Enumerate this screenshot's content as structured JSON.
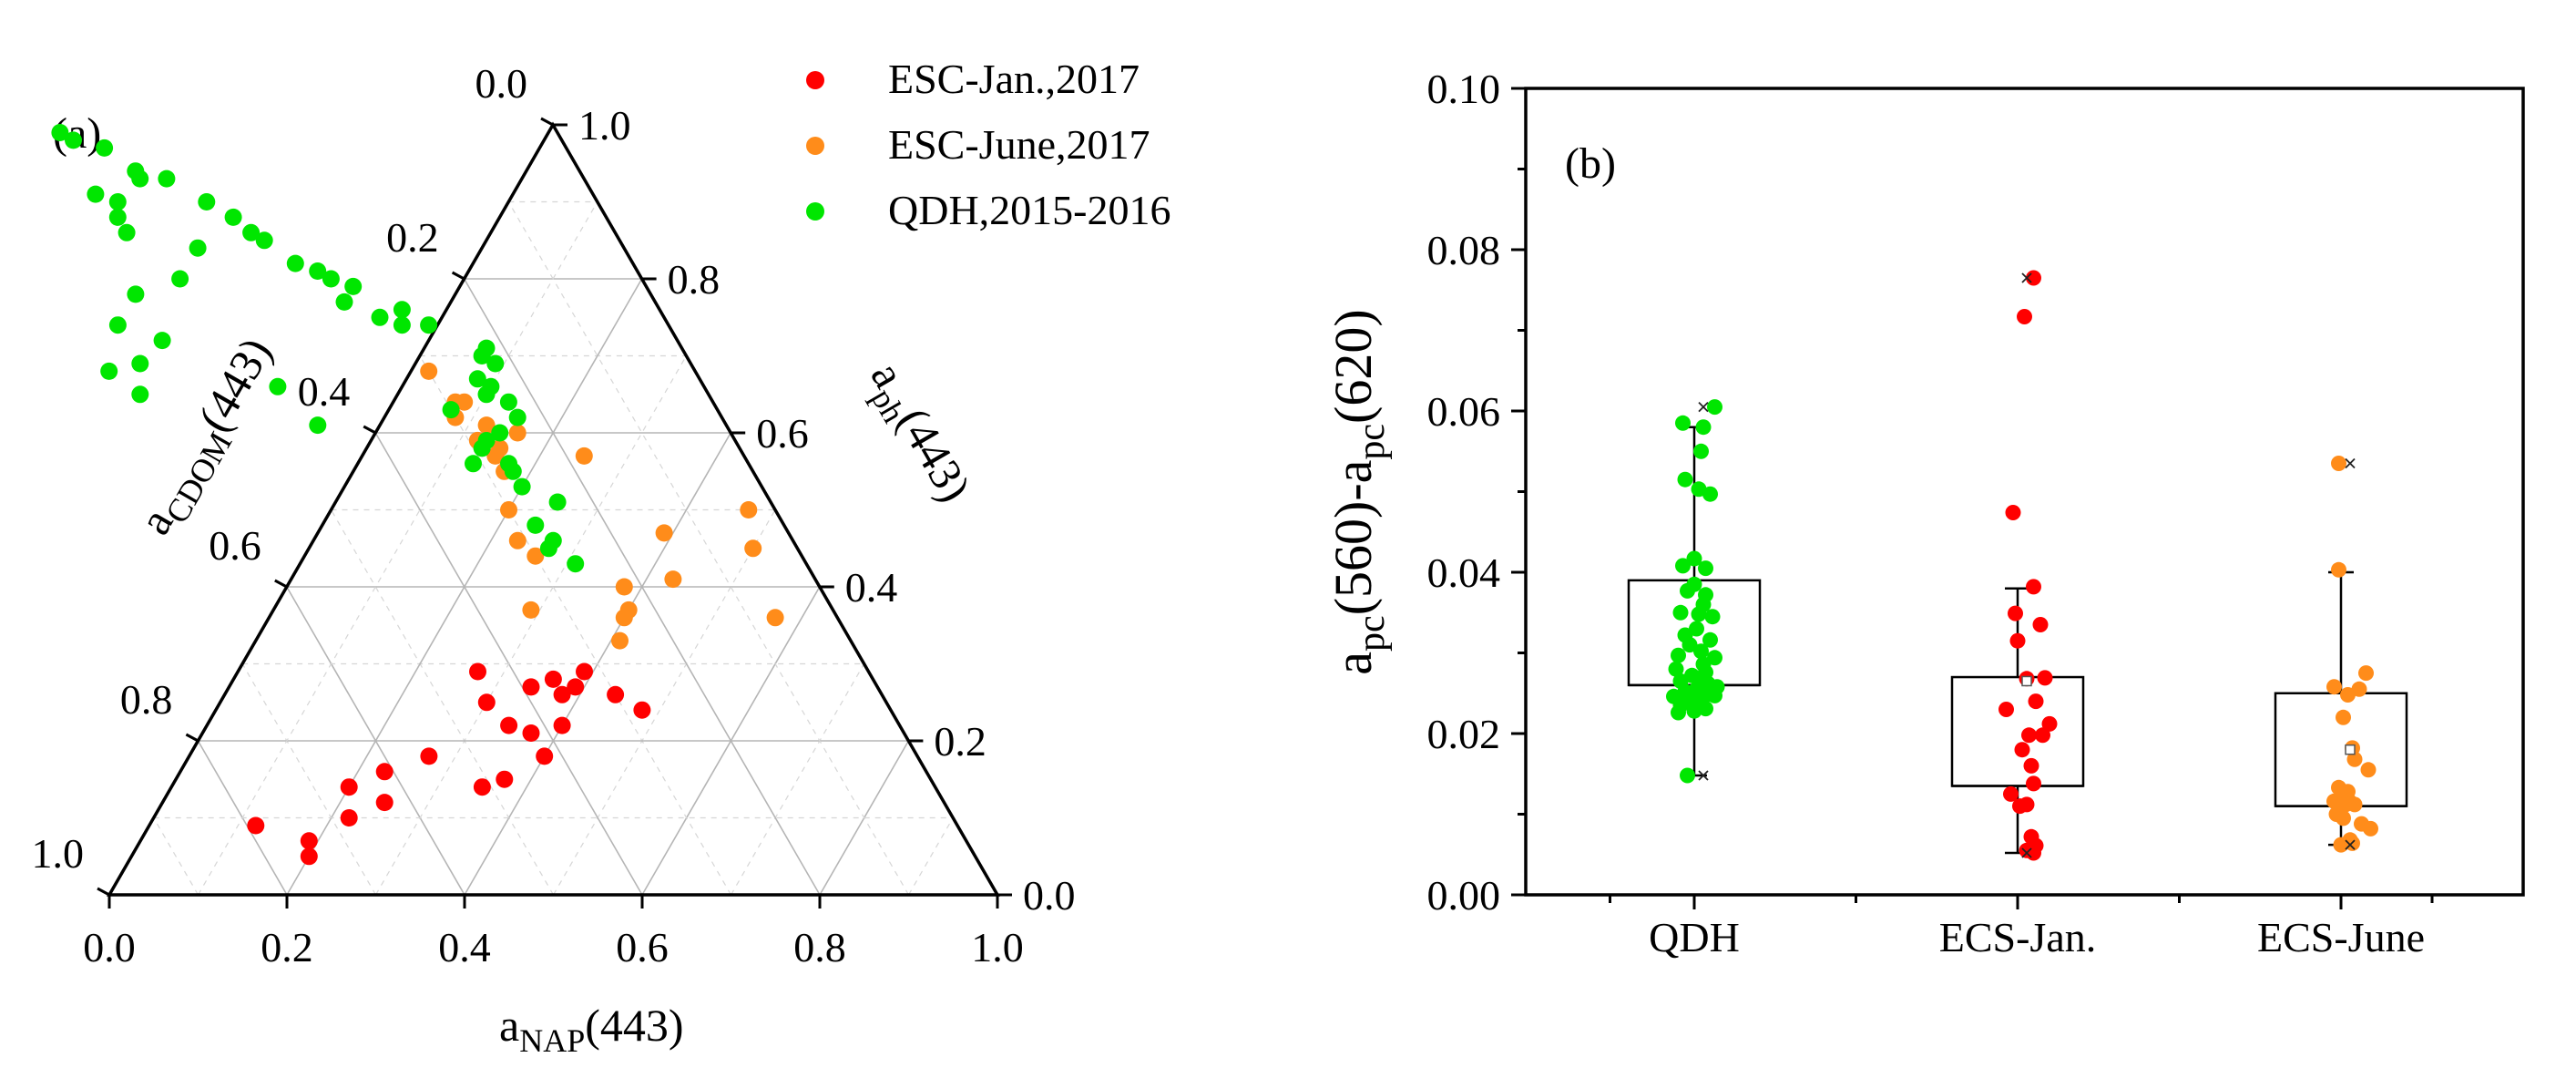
{
  "chart_data": [
    {
      "type": "ternary-scatter",
      "panel_label": "(a)",
      "axes": {
        "bottom": {
          "label_main": "a",
          "label_sub": "NAP",
          "label_suffix": "(443)",
          "ticks": [
            "0.0",
            "0.2",
            "0.4",
            "0.6",
            "0.8",
            "1.0"
          ]
        },
        "left": {
          "label_main": "a",
          "label_sub": "CDOM",
          "label_suffix": "(443)",
          "ticks": [
            "0.0",
            "0.2",
            "0.4",
            "0.6",
            "0.8",
            "1.0"
          ]
        },
        "right": {
          "label_main": "a",
          "label_sub": "ph",
          "label_suffix": "(443)",
          "ticks": [
            "0.0",
            "0.2",
            "0.4",
            "0.6",
            "0.8",
            "1.0"
          ]
        }
      },
      "legend": [
        {
          "name": "ESC-Jan.,2017",
          "color": "#ff0000"
        },
        {
          "name": "ESC-June,2017",
          "color": "#ff8c1a"
        },
        {
          "name": "QDH,2015-2016",
          "color": "#00e600"
        }
      ],
      "series": [
        {
          "name": "ESC-Jan.,2017",
          "color": "#ff0000",
          "points": [
            [
              0.24,
              0.28,
              0.48
            ],
            [
              0.26,
              0.3,
              0.44
            ],
            [
              0.28,
              0.36,
              0.36
            ],
            [
              0.27,
              0.34,
              0.39
            ],
            [
              0.22,
              0.38,
              0.4
            ],
            [
              0.22,
              0.44,
              0.34
            ],
            [
              0.27,
              0.39,
              0.34
            ],
            [
              0.29,
              0.44,
              0.27
            ],
            [
              0.25,
              0.45,
              0.3
            ],
            [
              0.29,
              0.32,
              0.39
            ],
            [
              0.26,
              0.36,
              0.38
            ],
            [
              0.18,
              0.42,
              0.4
            ],
            [
              0.14,
              0.51,
              0.35
            ],
            [
              0.15,
              0.48,
              0.37
            ],
            [
              0.18,
              0.55,
              0.27
            ],
            [
              0.12,
              0.63,
              0.25
            ],
            [
              0.1,
              0.68,
              0.22
            ],
            [
              0.14,
              0.66,
              0.2
            ],
            [
              0.16,
              0.61,
              0.23
            ],
            [
              0.09,
              0.79,
              0.12
            ],
            [
              0.05,
              0.75,
              0.2
            ],
            [
              0.07,
              0.74,
              0.19
            ],
            [
              0.21,
              0.42,
              0.37
            ]
          ]
        },
        {
          "name": "ESC-June,2017",
          "color": "#ff8c1a",
          "points": [
            [
              0.36,
              0.07,
              0.57
            ],
            [
              0.41,
              0.16,
              0.43
            ],
            [
              0.33,
              0.26,
              0.41
            ],
            [
              0.37,
              0.23,
              0.4
            ],
            [
              0.36,
              0.24,
              0.4
            ],
            [
              0.4,
              0.22,
              0.38
            ],
            [
              0.5,
              0.03,
              0.47
            ],
            [
              0.45,
              0.05,
              0.5
            ],
            [
              0.37,
              0.34,
              0.29
            ],
            [
              0.44,
              0.3,
              0.26
            ],
            [
              0.46,
              0.31,
              0.23
            ],
            [
              0.5,
              0.3,
              0.2
            ],
            [
              0.57,
              0.28,
              0.15
            ],
            [
              0.58,
              0.27,
              0.15
            ],
            [
              0.55,
              0.28,
              0.17
            ],
            [
              0.59,
              0.29,
              0.12
            ],
            [
              0.62,
              0.3,
              0.08
            ],
            [
              0.68,
              0.3,
              0.02
            ],
            [
              0.64,
              0.28,
              0.08
            ],
            [
              0.64,
              0.29,
              0.07
            ],
            [
              0.61,
              0.27,
              0.12
            ],
            [
              0.6,
              0.24,
              0.16
            ],
            [
              0.57,
              0.18,
              0.25
            ],
            [
              0.47,
              0.14,
              0.39
            ]
          ]
        },
        {
          "name": "QDH,2015-2016",
          "color": "#00e600",
          "points": [
            [
              0.43,
              0.26,
              0.31
            ],
            [
              0.45,
              0.28,
              0.27
            ],
            [
              0.46,
              0.27,
              0.27
            ],
            [
              0.48,
              0.28,
              0.24
            ],
            [
              0.51,
              0.24,
              0.25
            ],
            [
              0.53,
              0.27,
              0.2
            ],
            [
              0.55,
              0.27,
              0.18
            ],
            [
              0.56,
              0.27,
              0.17
            ],
            [
              0.56,
              0.31,
              0.13
            ],
            [
              0.58,
              0.29,
              0.13
            ],
            [
              0.59,
              0.28,
              0.13
            ],
            [
              0.6,
              0.26,
              0.14
            ],
            [
              0.62,
              0.23,
              0.15
            ],
            [
              0.63,
              0.3,
              0.07
            ],
            [
              0.64,
              0.23,
              0.13
            ],
            [
              0.65,
              0.25,
              0.1
            ],
            [
              0.66,
              0.24,
              0.1
            ],
            [
              0.67,
              0.25,
              0.08
            ],
            [
              0.69,
              0.22,
              0.09
            ],
            [
              0.7,
              0.23,
              0.07
            ],
            [
              0.71,
              0.22,
              0.07
            ],
            [
              0.74,
              0.27,
              -0.01
            ],
            [
              0.74,
              0.3,
              -0.04
            ],
            [
              0.75,
              0.32,
              -0.07
            ],
            [
              0.76,
              0.29,
              -0.05
            ],
            [
              0.77,
              0.35,
              -0.12
            ],
            [
              0.79,
              0.33,
              -0.12
            ],
            [
              0.8,
              0.35,
              -0.15
            ],
            [
              0.81,
              0.36,
              -0.17
            ],
            [
              0.82,
              0.38,
              -0.2
            ],
            [
              0.85,
              0.4,
              -0.25
            ],
            [
              0.86,
              0.41,
              -0.27
            ],
            [
              0.88,
              0.42,
              -0.3
            ],
            [
              0.9,
              0.44,
              -0.34
            ],
            [
              0.94,
              0.5,
              -0.44
            ],
            [
              0.97,
              0.52,
              -0.49
            ],
            [
              0.93,
              0.47,
              -0.4
            ],
            [
              0.98,
              0.55,
              -0.53
            ],
            [
              0.93,
              0.5,
              -0.43
            ],
            [
              0.9,
              0.54,
              -0.44
            ],
            [
              0.88,
              0.55,
              -0.43
            ],
            [
              0.86,
              0.55,
              -0.41
            ],
            [
              0.99,
              0.56,
              -0.55
            ],
            [
              0.91,
              0.56,
              -0.47
            ],
            [
              0.84,
              0.48,
              -0.32
            ],
            [
              0.8,
              0.52,
              -0.32
            ],
            [
              0.78,
              0.58,
              -0.36
            ],
            [
              0.74,
              0.62,
              -0.36
            ],
            [
              0.72,
              0.58,
              -0.3
            ],
            [
              0.69,
              0.62,
              -0.31
            ],
            [
              0.68,
              0.66,
              -0.34
            ],
            [
              0.65,
              0.64,
              -0.29
            ],
            [
              0.61,
              0.46,
              -0.07
            ],
            [
              0.66,
              0.48,
              -0.14
            ]
          ]
        }
      ]
    },
    {
      "type": "box",
      "panel_label": "(b)",
      "ylabel": {
        "p1_main": "a",
        "p1_sub": "pc",
        "p1_suffix": "(560)-",
        "p2_main": "a",
        "p2_sub": "pc",
        "p2_suffix": "(620)"
      },
      "ylim": [
        0,
        0.1
      ],
      "yticks": [
        "0.00",
        "0.02",
        "0.04",
        "0.06",
        "0.08",
        "0.10"
      ],
      "categories": [
        "QDH",
        "ECS-Jan.",
        "ECS-June"
      ],
      "boxes": [
        {
          "name": "QDH",
          "q1": 0.026,
          "median": 0.026,
          "q3": 0.039,
          "whisker_low": 0.0148,
          "whisker_high": 0.058,
          "mean": null,
          "max": 0.0605,
          "min": 0.0148,
          "color": "#00e600",
          "points": [
            [
              0.09,
              0.0605
            ],
            [
              -0.05,
              0.0585
            ],
            [
              0.04,
              0.058
            ],
            [
              0.03,
              0.055
            ],
            [
              -0.04,
              0.0515
            ],
            [
              0.02,
              0.0503
            ],
            [
              0.07,
              0.0497
            ],
            [
              0.0,
              0.0417
            ],
            [
              -0.05,
              0.0408
            ],
            [
              0.05,
              0.0405
            ],
            [
              0.0,
              0.0385
            ],
            [
              -0.03,
              0.0377
            ],
            [
              0.05,
              0.0372
            ],
            [
              0.04,
              0.036
            ],
            [
              -0.06,
              0.035
            ],
            [
              0.02,
              0.0348
            ],
            [
              0.08,
              0.0345
            ],
            [
              0.01,
              0.033
            ],
            [
              -0.04,
              0.0322
            ],
            [
              0.07,
              0.0316
            ],
            [
              -0.02,
              0.031
            ],
            [
              0.03,
              0.0302
            ],
            [
              -0.07,
              0.0297
            ],
            [
              0.09,
              0.0294
            ],
            [
              0.04,
              0.0286
            ],
            [
              -0.08,
              0.028
            ],
            [
              0.05,
              0.0276
            ],
            [
              -0.01,
              0.0272
            ],
            [
              0.03,
              0.0268
            ],
            [
              -0.06,
              0.0265
            ],
            [
              0.06,
              0.0262
            ],
            [
              0.1,
              0.0258
            ],
            [
              0.01,
              0.0255
            ],
            [
              -0.04,
              0.0252
            ],
            [
              0.07,
              0.0249
            ],
            [
              -0.09,
              0.0246
            ],
            [
              0.03,
              0.0243
            ],
            [
              -0.02,
              0.024
            ],
            [
              0.09,
              0.0247
            ],
            [
              0.02,
              0.0238
            ],
            [
              -0.06,
              0.0235
            ],
            [
              0.05,
              0.0231
            ],
            [
              0.0,
              0.0228
            ],
            [
              -0.07,
              0.0226
            ],
            [
              -0.03,
              0.0148
            ]
          ]
        },
        {
          "name": "ECS-Jan.",
          "q1": 0.0135,
          "median": 0.0135,
          "q3": 0.027,
          "whisker_low": 0.0052,
          "whisker_high": 0.038,
          "mean": 0.0265,
          "max": 0.0765,
          "min": 0.0052,
          "color": "#ff0000",
          "points": [
            [
              0.07,
              0.0765
            ],
            [
              0.03,
              0.0717
            ],
            [
              -0.02,
              0.0474
            ],
            [
              0.07,
              0.0382
            ],
            [
              -0.01,
              0.0349
            ],
            [
              0.1,
              0.0335
            ],
            [
              0.0,
              0.0315
            ],
            [
              0.04,
              0.0268
            ],
            [
              0.12,
              0.0269
            ],
            [
              0.08,
              0.024
            ],
            [
              -0.05,
              0.023
            ],
            [
              0.14,
              0.0212
            ],
            [
              0.11,
              0.0198
            ],
            [
              0.05,
              0.0198
            ],
            [
              0.02,
              0.018
            ],
            [
              0.06,
              0.016
            ],
            [
              0.07,
              0.0138
            ],
            [
              -0.03,
              0.0125
            ],
            [
              0.01,
              0.011
            ],
            [
              0.04,
              0.0112
            ],
            [
              0.06,
              0.0072
            ],
            [
              0.08,
              0.0061
            ],
            [
              0.07,
              0.0052
            ],
            [
              0.04,
              0.0055
            ]
          ]
        },
        {
          "name": "ECS-June",
          "q1": 0.011,
          "median": 0.011,
          "q3": 0.025,
          "whisker_low": 0.0062,
          "whisker_high": 0.04,
          "mean": 0.018,
          "max": 0.0535,
          "min": 0.0062,
          "color": "#ff8c1a",
          "points": [
            [
              -0.01,
              0.0535
            ],
            [
              -0.01,
              0.0403
            ],
            [
              0.11,
              0.0275
            ],
            [
              0.08,
              0.0255
            ],
            [
              -0.03,
              0.0258
            ],
            [
              0.03,
              0.0248
            ],
            [
              0.01,
              0.022
            ],
            [
              0.05,
              0.0182
            ],
            [
              0.06,
              0.0168
            ],
            [
              0.12,
              0.0155
            ],
            [
              -0.01,
              0.0133
            ],
            [
              0.03,
              0.0128
            ],
            [
              0.04,
              0.0115
            ],
            [
              0.0,
              0.0118
            ],
            [
              -0.03,
              0.0116
            ],
            [
              0.02,
              0.0112
            ],
            [
              0.06,
              0.0112
            ],
            [
              -0.02,
              0.01
            ],
            [
              0.01,
              0.0095
            ],
            [
              0.09,
              0.0088
            ],
            [
              0.13,
              0.0082
            ],
            [
              0.04,
              0.0068
            ],
            [
              0.05,
              0.0064
            ],
            [
              0.0,
              0.0062
            ]
          ]
        }
      ]
    }
  ]
}
